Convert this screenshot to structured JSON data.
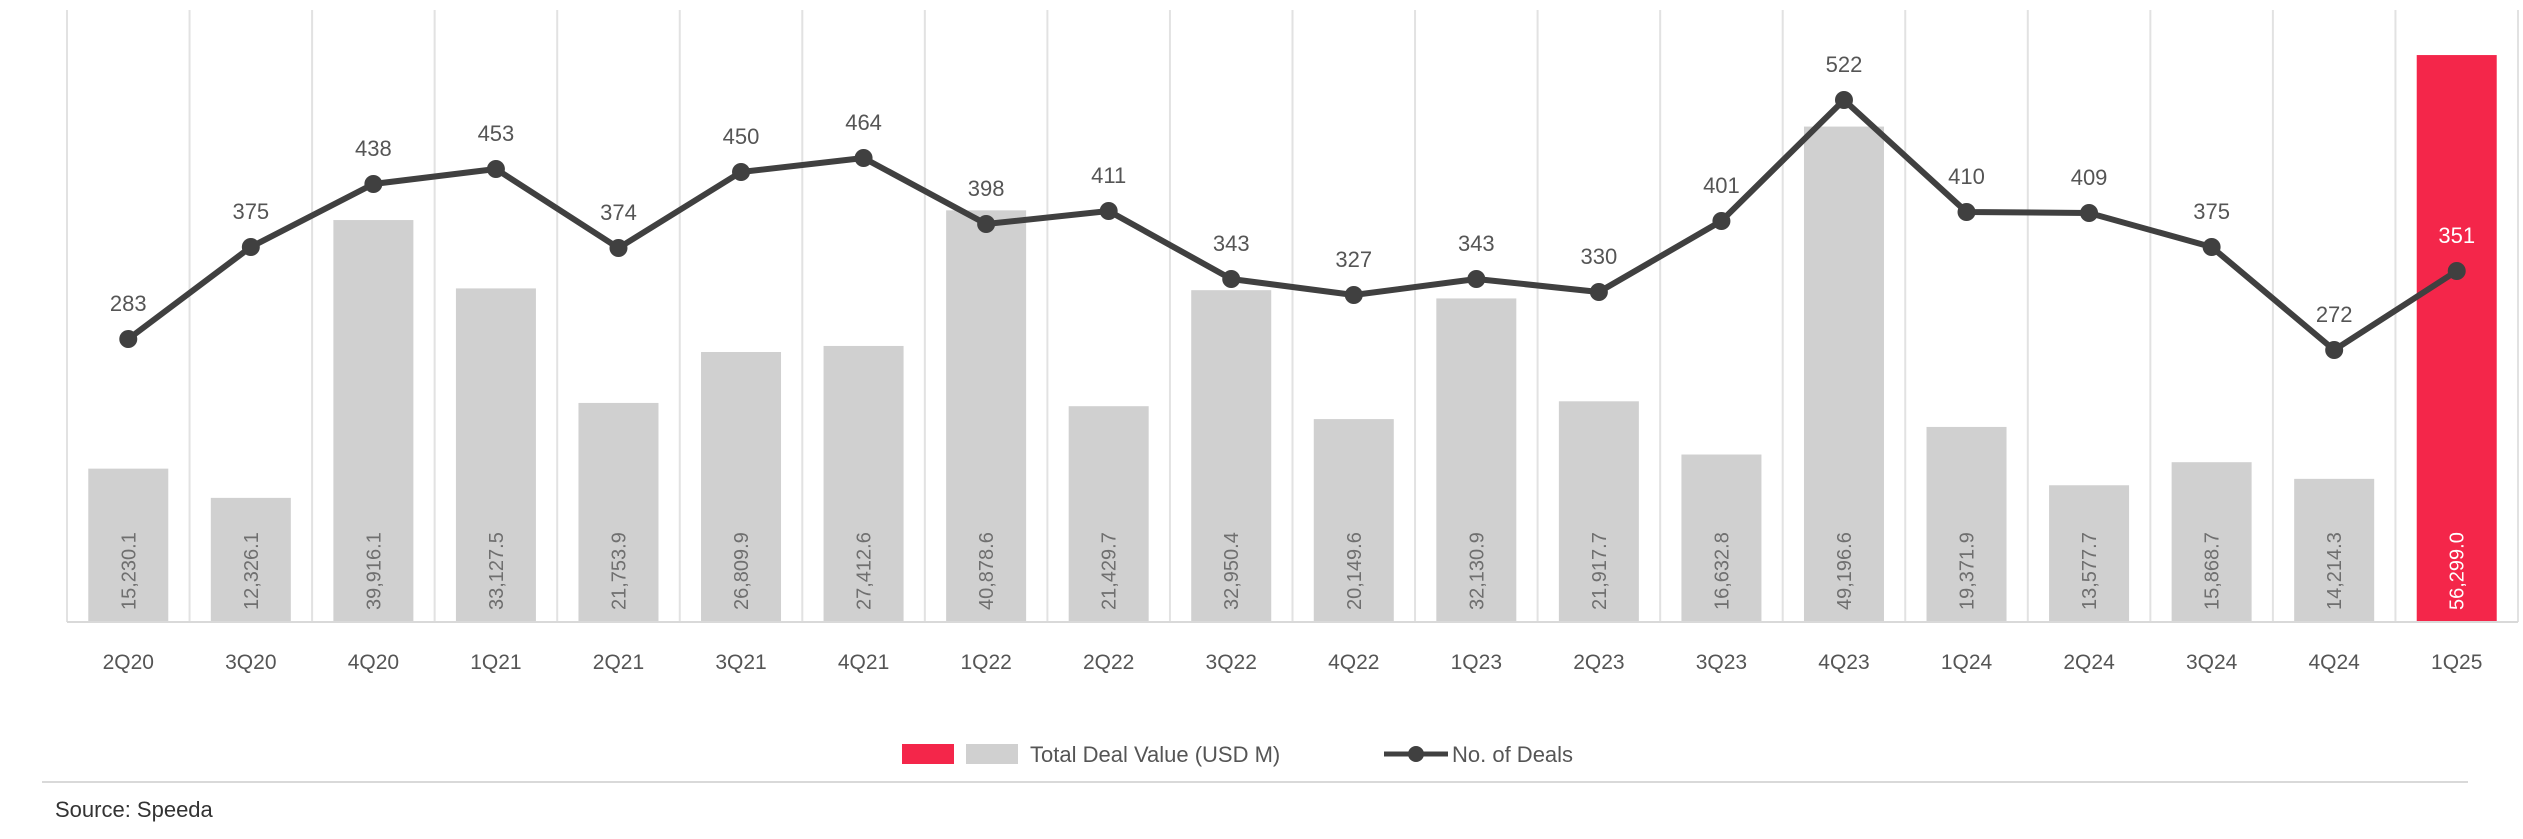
{
  "chart_data": {
    "type": "bar",
    "categories": [
      "2Q20",
      "3Q20",
      "4Q20",
      "1Q21",
      "2Q21",
      "3Q21",
      "4Q21",
      "1Q22",
      "2Q22",
      "3Q22",
      "4Q22",
      "1Q23",
      "2Q23",
      "3Q23",
      "4Q23",
      "1Q24",
      "2Q24",
      "3Q24",
      "4Q24",
      "1Q25"
    ],
    "series": [
      {
        "name": "Total Deal Value  (USD M)",
        "type": "bar",
        "axis": "left",
        "values": [
          15230.1,
          12326.1,
          39916.1,
          33127.5,
          21753.9,
          26809.9,
          27412.6,
          40878.6,
          21429.7,
          32950.4,
          20149.6,
          32130.9,
          21917.7,
          16632.8,
          49196.6,
          19371.9,
          13577.7,
          15868.7,
          14214.3,
          56299.0
        ],
        "labels": [
          "15,230.1",
          "12,326.1",
          "39,916.1",
          "33,127.5",
          "21,753.9",
          "26,809.9",
          "27,412.6",
          "40,878.6",
          "21,429.7",
          "32,950.4",
          "20,149.6",
          "32,130.9",
          "21,917.7",
          "16,632.8",
          "49,196.6",
          "19,371.9",
          "13,577.7",
          "15,868.7",
          "14,214.3",
          "56,299.0"
        ],
        "color": "#d0d0d0",
        "highlight_color": "#f4264a",
        "highlight_index": 19
      },
      {
        "name": "No. of Deals",
        "type": "line",
        "axis": "right",
        "values": [
          283,
          375,
          438,
          453,
          374,
          450,
          464,
          398,
          411,
          343,
          327,
          343,
          330,
          401,
          522,
          410,
          409,
          375,
          272,
          351
        ],
        "labels": [
          "283",
          "375",
          "438",
          "453",
          "374",
          "450",
          "464",
          "398",
          "411",
          "343",
          "327",
          "343",
          "330",
          "401",
          "522",
          "410",
          "409",
          "375",
          "272",
          "351"
        ],
        "color": "#404040"
      }
    ],
    "ylim_left": [
      0,
      57000
    ],
    "ylim_right": [
      0,
      620
    ],
    "grid": "vertical",
    "legend_position": "bottom-center",
    "source": "Source: Speeda"
  }
}
